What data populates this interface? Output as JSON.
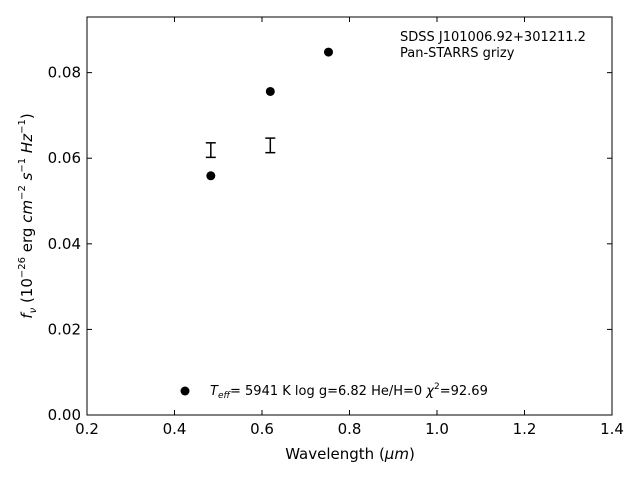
{
  "chart_data": {
    "type": "scatter",
    "xlabel_text": "Wavelength (",
    "xlabel_unit": "μm",
    "xlabel_close": ")",
    "ylabel": {
      "f": "f",
      "nu": "ν",
      "open": " (10",
      "exp26": "−26",
      "erg": " erg ",
      "cm": "cm",
      "exp2": "−2",
      "s": " s",
      "exp1a": "−1",
      "hz": " Hz",
      "exp1b": "−1",
      "close": ")"
    },
    "xlim": [
      0.2,
      1.4
    ],
    "ylim": [
      0.0,
      0.093
    ],
    "xticks": [
      0.2,
      0.4,
      0.6,
      0.8,
      1.0,
      1.2,
      1.4
    ],
    "xtick_labels": [
      "0.2",
      "0.4",
      "0.6",
      "0.8",
      "1.0",
      "1.2",
      "1.4"
    ],
    "yticks": [
      0.0,
      0.02,
      0.04,
      0.06,
      0.08
    ],
    "ytick_labels": [
      "0.00",
      "0.02",
      "0.04",
      "0.06",
      "0.08"
    ],
    "grid": false,
    "series": [
      {
        "marker": "circle",
        "color": "#000000",
        "points": [
          {
            "x": 0.483,
            "y": 0.0559
          },
          {
            "x": 0.619,
            "y": 0.0756
          },
          {
            "x": 0.752,
            "y": 0.0848
          }
        ]
      },
      {
        "marker": "errorbar",
        "color": "#000000",
        "points": [
          {
            "x": 0.483,
            "y": 0.0619,
            "yerr": 0.0017
          },
          {
            "x": 0.619,
            "y": 0.063,
            "yerr": 0.0017
          }
        ]
      }
    ],
    "legend": {
      "placement": "bottom",
      "teff_symbol": "T",
      "teff_sub": "eff",
      "text_main": "=  5941 K  log g=6.82  He/H=0  ",
      "chi": "χ",
      "chi_exp": "2",
      "chi_val": "=92.69"
    },
    "annotations": [
      "SDSS J101006.92+301211.2",
      "Pan-STARRS grizy"
    ]
  }
}
